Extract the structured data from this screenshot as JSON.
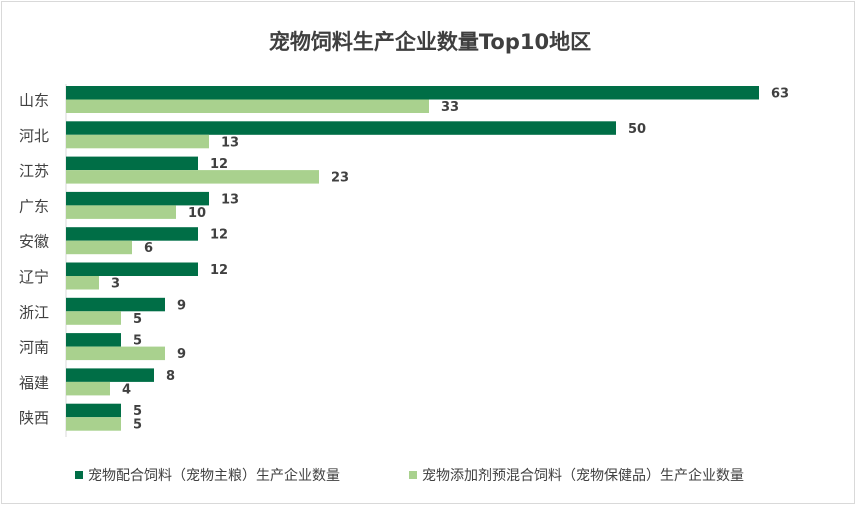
{
  "chart_data": {
    "type": "bar",
    "orientation": "horizontal",
    "title": "宠物饲料生产企业数量Top10地区",
    "categories": [
      "山东",
      "河北",
      "江苏",
      "广东",
      "安徽",
      "辽宁",
      "浙江",
      "河南",
      "福建",
      "陕西"
    ],
    "series": [
      {
        "name": "宠物配合饲料（宠物主粮）生产企业数量",
        "color": "#006e46",
        "values": [
          63,
          50,
          12,
          13,
          12,
          12,
          9,
          5,
          8,
          5
        ]
      },
      {
        "name": "宠物添加剂预混合饲料（宠物保健品）生产企业数量",
        "color": "#a9d18e",
        "values": [
          33,
          13,
          23,
          10,
          6,
          3,
          5,
          9,
          4,
          5
        ]
      }
    ],
    "xlim": [
      0,
      63
    ],
    "grid": false,
    "legend_position": "bottom",
    "data_labels": true
  }
}
